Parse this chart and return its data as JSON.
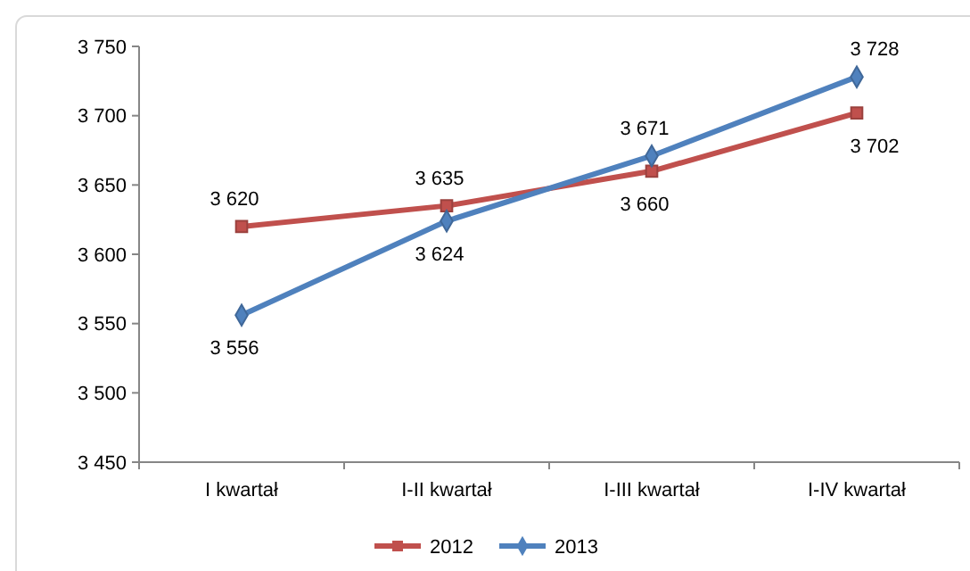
{
  "chart_data": {
    "type": "line",
    "categories": [
      "I kwartał",
      "I-II kwartał",
      "I-III kwartał",
      "I-IV kwartał"
    ],
    "series": [
      {
        "name": "2012",
        "color": "#c0504d",
        "marker": "square",
        "values": [
          3620,
          3635,
          3660,
          3702
        ],
        "value_labels": [
          "3 620",
          "3 635",
          "3 660",
          "3 702"
        ]
      },
      {
        "name": "2013",
        "color": "#4f81bd",
        "marker": "diamond",
        "values": [
          3556,
          3624,
          3671,
          3728
        ],
        "value_labels": [
          "3 556",
          "3 624",
          "3 671",
          "3 728"
        ]
      }
    ],
    "ylim": [
      3450,
      3750
    ],
    "yticks": [
      {
        "value": 3450,
        "label": "3 450"
      },
      {
        "value": 3500,
        "label": "3 500"
      },
      {
        "value": 3550,
        "label": "3 550"
      },
      {
        "value": 3600,
        "label": "3 600"
      },
      {
        "value": 3650,
        "label": "3 650"
      },
      {
        "value": 3700,
        "label": "3 700"
      },
      {
        "value": 3750,
        "label": "3 750"
      }
    ],
    "grid": false,
    "legend": "bottom",
    "line_style": "solid"
  }
}
